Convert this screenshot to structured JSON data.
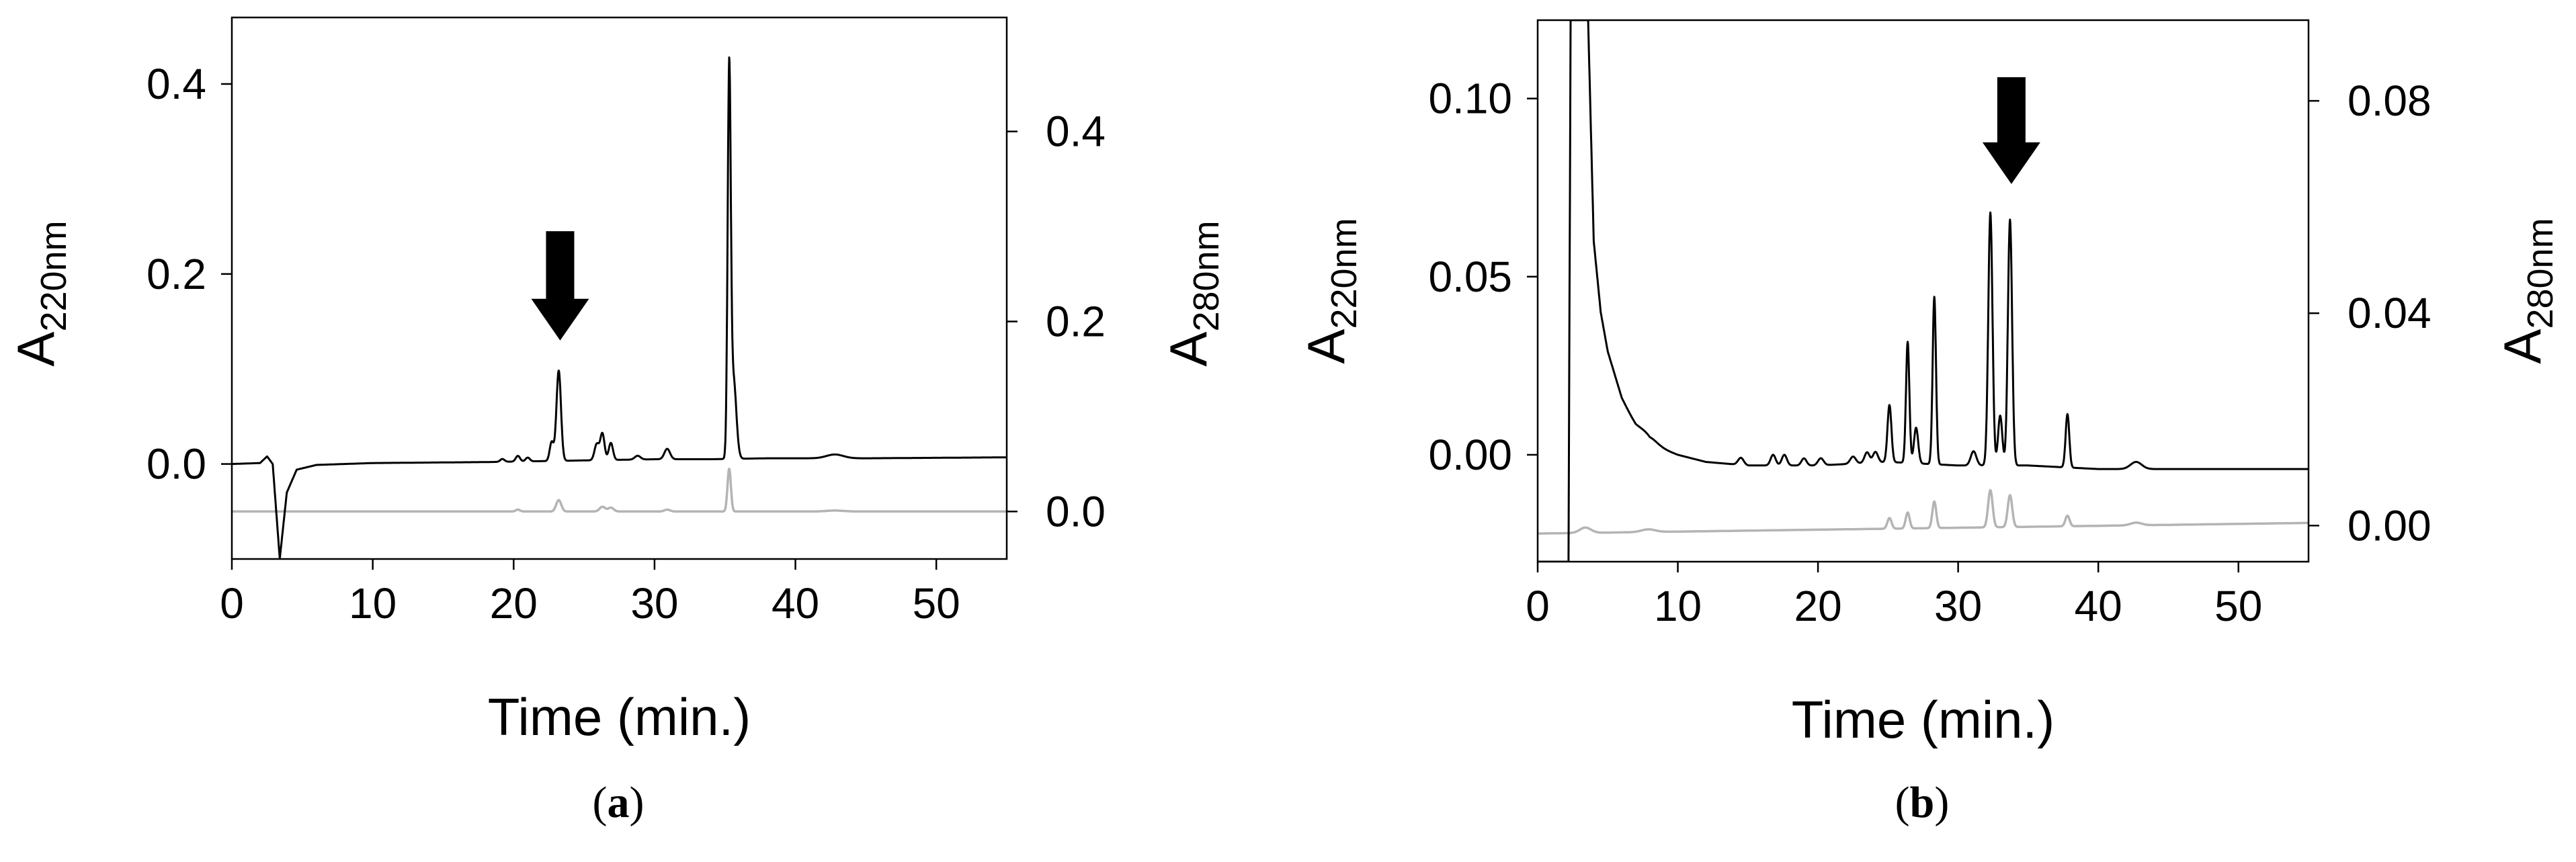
{
  "colors": {
    "a220_trace": "#000000",
    "a280_trace": "#b4b4b4",
    "axes": "#000000",
    "background": "#ffffff"
  },
  "chart_data": [
    {
      "panel": "a",
      "type": "line",
      "caption": "(a)",
      "xlabel": "Time (min.)",
      "ylabel_left": {
        "main": "A",
        "sub": "220nm"
      },
      "ylabel_right": {
        "main": "A",
        "sub": "280nm"
      },
      "xlim": [
        0,
        55
      ],
      "ylim_left": [
        -0.1,
        0.47
      ],
      "ylim_right": [
        -0.05,
        0.52
      ],
      "xticks": [
        0,
        10,
        20,
        30,
        40,
        50
      ],
      "xtick_labels": [
        "0",
        "10",
        "20",
        "30",
        "40",
        "50"
      ],
      "yticks_left": [
        0.0,
        0.2,
        0.4
      ],
      "ytick_labels_left": [
        "0.0",
        "0.2",
        "0.4"
      ],
      "yticks_right": [
        0.0,
        0.2,
        0.4
      ],
      "ytick_labels_right": [
        "0.0",
        "0.2",
        "0.4"
      ],
      "grid": false,
      "annotation": {
        "type": "arrow",
        "x": 23.3,
        "y_tip": 0.13,
        "y_tail": 0.245
      },
      "series": [
        {
          "color": "#000000",
          "axis": "left",
          "baseline": [
            [
              0,
              0.0
            ],
            [
              2,
              0.001
            ],
            [
              2.5,
              0.008
            ],
            [
              2.9,
              0.0
            ],
            [
              3.4,
              -0.1
            ],
            [
              3.9,
              -0.03
            ],
            [
              4.6,
              -0.006
            ],
            [
              6,
              -0.001
            ],
            [
              10,
              0.001
            ],
            [
              18,
              0.002
            ],
            [
              22,
              0.003
            ],
            [
              26,
              0.004
            ],
            [
              30,
              0.005
            ],
            [
              34,
              0.005
            ],
            [
              38,
              0.006
            ],
            [
              45,
              0.006
            ],
            [
              55,
              0.007
            ]
          ],
          "peaks": [
            [
              19.2,
              0.003,
              0.15
            ],
            [
              20.3,
              0.006,
              0.15
            ],
            [
              21.0,
              0.004,
              0.15
            ],
            [
              22.7,
              0.02,
              0.14
            ],
            [
              23.2,
              0.095,
              0.16
            ],
            [
              25.9,
              0.017,
              0.16
            ],
            [
              26.3,
              0.028,
              0.15
            ],
            [
              26.9,
              0.018,
              0.15
            ],
            [
              28.8,
              0.004,
              0.2
            ],
            [
              30.9,
              0.011,
              0.2
            ],
            [
              35.3,
              0.395,
              0.11
            ],
            [
              35.6,
              0.085,
              0.2
            ],
            [
              42.8,
              0.004,
              0.6
            ]
          ]
        },
        {
          "color": "#b4b4b4",
          "axis": "right",
          "baseline": [
            [
              0,
              0.0
            ],
            [
              55,
              0.0
            ]
          ],
          "peaks": [
            [
              20.3,
              0.002,
              0.15
            ],
            [
              23.2,
              0.012,
              0.18
            ],
            [
              26.3,
              0.005,
              0.2
            ],
            [
              26.9,
              0.004,
              0.2
            ],
            [
              30.9,
              0.002,
              0.2
            ],
            [
              35.3,
              0.045,
              0.12
            ],
            [
              42.8,
              0.001,
              0.6
            ]
          ]
        }
      ]
    },
    {
      "panel": "b",
      "type": "line",
      "caption": "(b)",
      "xlabel": "Time (min.)",
      "ylabel_left": {
        "main": "A",
        "sub": "220nm"
      },
      "ylabel_right": {
        "main": "A",
        "sub": "280nm"
      },
      "xlim": [
        0,
        55
      ],
      "ylim_left": [
        -0.03,
        0.122
      ],
      "ylim_right": [
        -0.0068,
        0.0952
      ],
      "xticks": [
        0,
        10,
        20,
        30,
        40,
        50
      ],
      "xtick_labels": [
        "0",
        "10",
        "20",
        "30",
        "40",
        "50"
      ],
      "yticks_left": [
        0.0,
        0.05,
        0.1
      ],
      "ytick_labels_left": [
        "0.00",
        "0.05",
        "0.10"
      ],
      "yticks_right": [
        0.0,
        0.04,
        0.08
      ],
      "ytick_labels_right": [
        "0.00",
        "0.04",
        "0.08"
      ],
      "grid": false,
      "annotation": {
        "type": "arrow",
        "x": 33.8,
        "y_tip": 0.076,
        "y_tail": 0.106
      },
      "series": [
        {
          "color": "#000000",
          "axis": "left",
          "baseline": [
            [
              0,
              -0.03
            ],
            [
              2.2,
              -0.03
            ],
            [
              2.35,
              0.122
            ],
            [
              3.6,
              0.122
            ],
            [
              4.0,
              0.06
            ],
            [
              4.5,
              0.04
            ],
            [
              5,
              0.029
            ],
            [
              6,
              0.016
            ],
            [
              7,
              0.008
            ],
            [
              8,
              0.003
            ],
            [
              10,
              0.0
            ],
            [
              12,
              -0.002
            ],
            [
              15,
              -0.003
            ],
            [
              20,
              -0.003
            ],
            [
              25,
              -0.002
            ],
            [
              30,
              -0.003
            ],
            [
              35,
              -0.003
            ],
            [
              40,
              -0.004
            ],
            [
              45,
              -0.004
            ],
            [
              55,
              -0.004
            ]
          ],
          "peaks": [
            [
              7.9,
              0.002,
              0.6
            ],
            [
              14.5,
              0.002,
              0.2
            ],
            [
              16.8,
              0.003,
              0.18
            ],
            [
              17.6,
              0.003,
              0.18
            ],
            [
              19.0,
              0.002,
              0.18
            ],
            [
              20.2,
              0.002,
              0.2
            ],
            [
              22.5,
              0.002,
              0.2
            ],
            [
              23.5,
              0.003,
              0.18
            ],
            [
              24.1,
              0.003,
              0.18
            ],
            [
              25.1,
              0.016,
              0.14
            ],
            [
              26.4,
              0.034,
              0.12
            ],
            [
              27.0,
              0.01,
              0.15
            ],
            [
              28.3,
              0.047,
              0.12
            ],
            [
              31.1,
              0.004,
              0.2
            ],
            [
              32.3,
              0.071,
              0.15
            ],
            [
              33.0,
              0.014,
              0.15
            ],
            [
              33.7,
              0.069,
              0.15
            ],
            [
              37.8,
              0.015,
              0.13
            ],
            [
              42.7,
              0.002,
              0.4
            ]
          ]
        },
        {
          "color": "#b4b4b4",
          "axis": "right",
          "baseline": [
            [
              0,
              -0.0015
            ],
            [
              55,
              0.0005
            ]
          ],
          "peaks": [
            [
              3.4,
              0.001,
              0.4
            ],
            [
              7.9,
              0.0005,
              0.5
            ],
            [
              25.1,
              0.002,
              0.15
            ],
            [
              26.4,
              0.003,
              0.14
            ],
            [
              28.3,
              0.005,
              0.14
            ],
            [
              32.3,
              0.007,
              0.16
            ],
            [
              33.7,
              0.006,
              0.16
            ],
            [
              37.8,
              0.002,
              0.15
            ],
            [
              42.7,
              0.0005,
              0.4
            ]
          ]
        }
      ]
    }
  ]
}
